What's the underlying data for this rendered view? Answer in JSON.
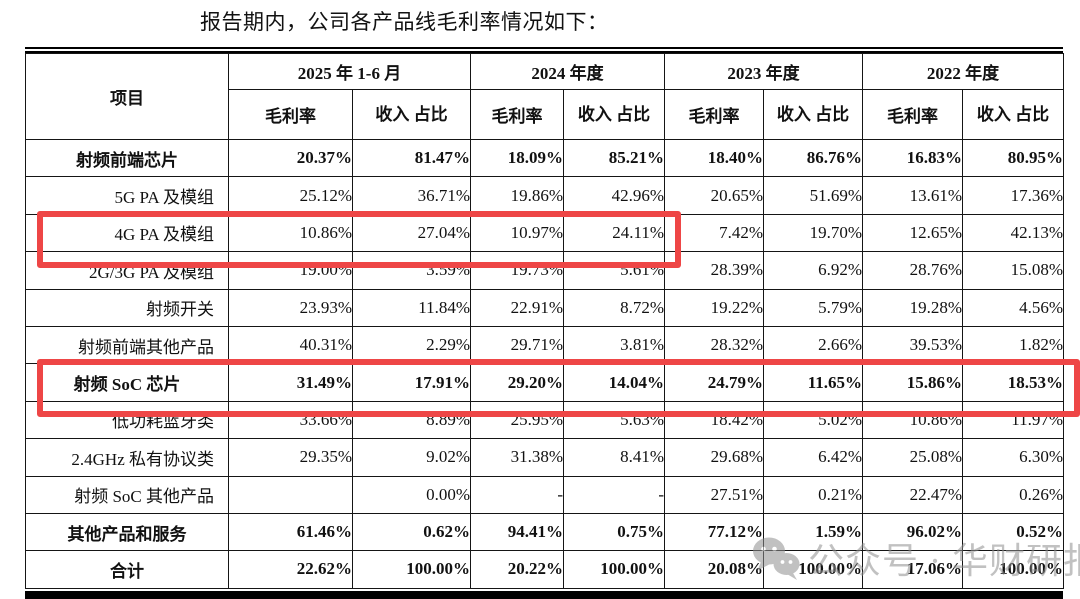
{
  "title": "报告期内，公司各产品线毛利率情况如下：",
  "table": {
    "item_header": "项目",
    "periods": [
      {
        "label": "2025 年 1-6 月"
      },
      {
        "label": "2024 年度"
      },
      {
        "label": "2023 年度"
      },
      {
        "label": "2022 年度"
      }
    ],
    "metric_headers": {
      "margin": "毛利率",
      "share": "收入\n占比"
    },
    "rows": [
      {
        "item": "射频前端芯片",
        "bold": true,
        "values": [
          "20.37%",
          "81.47%",
          "18.09%",
          "85.21%",
          "18.40%",
          "86.76%",
          "16.83%",
          "80.95%"
        ]
      },
      {
        "item": "5G PA 及模组",
        "bold": false,
        "values": [
          "25.12%",
          "36.71%",
          "19.86%",
          "42.96%",
          "20.65%",
          "51.69%",
          "13.61%",
          "17.36%"
        ]
      },
      {
        "item": "4G PA 及模组",
        "bold": false,
        "values": [
          "10.86%",
          "27.04%",
          "10.97%",
          "24.11%",
          "7.42%",
          "19.70%",
          "12.65%",
          "42.13%"
        ]
      },
      {
        "item": "2G/3G PA 及模组",
        "bold": false,
        "values": [
          "19.00%",
          "3.59%",
          "19.73%",
          "5.61%",
          "28.39%",
          "6.92%",
          "28.76%",
          "15.08%"
        ]
      },
      {
        "item": "射频开关",
        "bold": false,
        "values": [
          "23.93%",
          "11.84%",
          "22.91%",
          "8.72%",
          "19.22%",
          "5.79%",
          "19.28%",
          "4.56%"
        ]
      },
      {
        "item": "射频前端其他产品",
        "bold": false,
        "values": [
          "40.31%",
          "2.29%",
          "29.71%",
          "3.81%",
          "28.32%",
          "2.66%",
          "39.53%",
          "1.82%"
        ]
      },
      {
        "item": "射频 SoC 芯片",
        "bold": true,
        "values": [
          "31.49%",
          "17.91%",
          "29.20%",
          "14.04%",
          "24.79%",
          "11.65%",
          "15.86%",
          "18.53%"
        ]
      },
      {
        "item": "低功耗蓝牙类",
        "bold": false,
        "values": [
          "33.66%",
          "8.89%",
          "25.95%",
          "5.63%",
          "18.42%",
          "5.02%",
          "10.86%",
          "11.97%"
        ]
      },
      {
        "item": "2.4GHz 私有协议类",
        "bold": false,
        "values": [
          "29.35%",
          "9.02%",
          "31.38%",
          "8.41%",
          "29.68%",
          "6.42%",
          "25.08%",
          "6.30%"
        ]
      },
      {
        "item": "射频 SoC 其他产品",
        "bold": false,
        "values": [
          "",
          "0.00%",
          "-",
          "-",
          "27.51%",
          "0.21%",
          "22.47%",
          "0.26%"
        ]
      },
      {
        "item": "其他产品和服务",
        "bold": true,
        "values": [
          "61.46%",
          "0.62%",
          "94.41%",
          "0.75%",
          "77.12%",
          "1.59%",
          "96.02%",
          "0.52%"
        ]
      },
      {
        "item": "合计",
        "bold": true,
        "values": [
          "22.62%",
          "100.00%",
          "20.22%",
          "100.00%",
          "20.08%",
          "100.00%",
          "17.06%",
          "100.00%"
        ]
      }
    ],
    "highlights": [
      {
        "row": "4G PA 及模组",
        "span": "item-through-2024-share"
      },
      {
        "row": "射频 SoC 芯片",
        "span": "full-row"
      }
    ]
  },
  "watermark": {
    "icon": "wechat-logo-icon",
    "text": "公众号 · 华财研报"
  },
  "colors": {
    "highlight_red": "#ee4646",
    "table_border": "#151515",
    "text_black": "#111111",
    "watermark_gray": "#8f8f8f",
    "background": "#ffffff"
  }
}
